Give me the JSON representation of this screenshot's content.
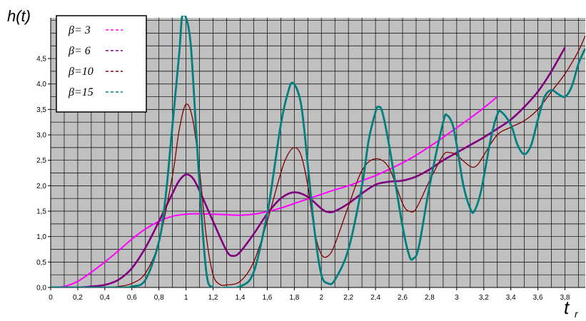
{
  "chart_data": {
    "type": "line",
    "title": "",
    "ylabel": "h(t)",
    "xlabel_main": "t",
    "xlabel_sub": "r",
    "xlim": [
      0,
      3.95
    ],
    "ylim": [
      0,
      5.3
    ],
    "x_ticks": [
      "0",
      "0,2",
      "0,4",
      "0,6",
      "0,8",
      "1",
      "1,2",
      "1,4",
      "1,6",
      "1,8",
      "2",
      "2,2",
      "2,4",
      "2,6",
      "2,8",
      "3",
      "3,2",
      "3,4",
      "3,6",
      "3,8"
    ],
    "y_ticks": [
      "0,0",
      "0,5",
      "1,0",
      "1,5",
      "2,0",
      "2,5",
      "3,0",
      "3,5",
      "4,0",
      "4,5"
    ],
    "grid": true,
    "legend_position": "top-left",
    "background_color": "#c0c0c0",
    "series": [
      {
        "name": "β= 3",
        "color": "#ff00ff",
        "points": [
          [
            0,
            0
          ],
          [
            0.1,
            0.02
          ],
          [
            0.2,
            0.12
          ],
          [
            0.3,
            0.3
          ],
          [
            0.4,
            0.5
          ],
          [
            0.5,
            0.72
          ],
          [
            0.6,
            0.95
          ],
          [
            0.7,
            1.15
          ],
          [
            0.8,
            1.3
          ],
          [
            0.9,
            1.4
          ],
          [
            1.0,
            1.44
          ],
          [
            1.1,
            1.45
          ],
          [
            1.2,
            1.44
          ],
          [
            1.3,
            1.43
          ],
          [
            1.4,
            1.42
          ],
          [
            1.5,
            1.44
          ],
          [
            1.6,
            1.49
          ],
          [
            1.7,
            1.56
          ],
          [
            1.8,
            1.65
          ],
          [
            1.9,
            1.74
          ],
          [
            2.0,
            1.83
          ],
          [
            2.1,
            1.92
          ],
          [
            2.2,
            2.0
          ],
          [
            2.3,
            2.1
          ],
          [
            2.4,
            2.2
          ],
          [
            2.5,
            2.32
          ],
          [
            2.6,
            2.45
          ],
          [
            2.7,
            2.6
          ],
          [
            2.8,
            2.77
          ],
          [
            2.9,
            2.95
          ],
          [
            3.0,
            3.14
          ],
          [
            3.1,
            3.33
          ],
          [
            3.2,
            3.53
          ],
          [
            3.3,
            3.75
          ]
        ]
      },
      {
        "name": "β= 6",
        "color": "#800080",
        "points": [
          [
            0,
            0
          ],
          [
            0.2,
            0.0
          ],
          [
            0.3,
            0.02
          ],
          [
            0.4,
            0.05
          ],
          [
            0.5,
            0.15
          ],
          [
            0.6,
            0.38
          ],
          [
            0.7,
            0.78
          ],
          [
            0.8,
            1.3
          ],
          [
            0.9,
            1.85
          ],
          [
            0.95,
            2.1
          ],
          [
            1.0,
            2.22
          ],
          [
            1.05,
            2.15
          ],
          [
            1.1,
            1.9
          ],
          [
            1.2,
            1.3
          ],
          [
            1.3,
            0.72
          ],
          [
            1.35,
            0.62
          ],
          [
            1.4,
            0.7
          ],
          [
            1.5,
            1.05
          ],
          [
            1.6,
            1.45
          ],
          [
            1.7,
            1.75
          ],
          [
            1.8,
            1.87
          ],
          [
            1.9,
            1.78
          ],
          [
            2.0,
            1.55
          ],
          [
            2.05,
            1.48
          ],
          [
            2.1,
            1.5
          ],
          [
            2.2,
            1.65
          ],
          [
            2.3,
            1.85
          ],
          [
            2.4,
            2.02
          ],
          [
            2.5,
            2.08
          ],
          [
            2.6,
            2.1
          ],
          [
            2.7,
            2.18
          ],
          [
            2.8,
            2.32
          ],
          [
            2.9,
            2.5
          ],
          [
            3.0,
            2.65
          ],
          [
            3.1,
            2.8
          ],
          [
            3.2,
            2.95
          ],
          [
            3.3,
            3.12
          ],
          [
            3.4,
            3.3
          ],
          [
            3.5,
            3.55
          ],
          [
            3.6,
            3.85
          ],
          [
            3.7,
            4.25
          ],
          [
            3.8,
            4.72
          ]
        ]
      },
      {
        "name": "β=10",
        "color": "#800000",
        "points": [
          [
            0,
            0
          ],
          [
            0.4,
            0.0
          ],
          [
            0.5,
            0.02
          ],
          [
            0.6,
            0.08
          ],
          [
            0.7,
            0.28
          ],
          [
            0.8,
            0.9
          ],
          [
            0.9,
            2.2
          ],
          [
            0.95,
            3.1
          ],
          [
            1.0,
            3.6
          ],
          [
            1.05,
            3.3
          ],
          [
            1.1,
            2.3
          ],
          [
            1.15,
            1.0
          ],
          [
            1.2,
            0.25
          ],
          [
            1.25,
            0.06
          ],
          [
            1.3,
            0.05
          ],
          [
            1.4,
            0.12
          ],
          [
            1.5,
            0.5
          ],
          [
            1.6,
            1.3
          ],
          [
            1.7,
            2.25
          ],
          [
            1.75,
            2.6
          ],
          [
            1.8,
            2.75
          ],
          [
            1.85,
            2.6
          ],
          [
            1.9,
            2.0
          ],
          [
            1.95,
            1.1
          ],
          [
            2.0,
            0.65
          ],
          [
            2.05,
            0.62
          ],
          [
            2.1,
            0.85
          ],
          [
            2.2,
            1.6
          ],
          [
            2.3,
            2.3
          ],
          [
            2.4,
            2.53
          ],
          [
            2.5,
            2.35
          ],
          [
            2.6,
            1.65
          ],
          [
            2.65,
            1.5
          ],
          [
            2.7,
            1.55
          ],
          [
            2.8,
            2.1
          ],
          [
            2.9,
            2.6
          ],
          [
            2.95,
            2.65
          ],
          [
            3.0,
            2.6
          ],
          [
            3.1,
            2.38
          ],
          [
            3.15,
            2.4
          ],
          [
            3.2,
            2.6
          ],
          [
            3.3,
            3.0
          ],
          [
            3.4,
            3.15
          ],
          [
            3.5,
            3.28
          ],
          [
            3.6,
            3.5
          ],
          [
            3.7,
            3.85
          ],
          [
            3.8,
            4.2
          ],
          [
            3.9,
            4.65
          ],
          [
            3.95,
            4.95
          ]
        ]
      },
      {
        "name": "β=15",
        "color": "#008080",
        "points": [
          [
            0,
            0
          ],
          [
            0.5,
            0.0
          ],
          [
            0.6,
            0.02
          ],
          [
            0.7,
            0.15
          ],
          [
            0.8,
            0.9
          ],
          [
            0.85,
            1.8
          ],
          [
            0.9,
            3.2
          ],
          [
            0.95,
            4.6
          ],
          [
            0.97,
            5.3
          ],
          [
            1.0,
            5.3
          ],
          [
            1.03,
            4.9
          ],
          [
            1.05,
            4.2
          ],
          [
            1.1,
            2.0
          ],
          [
            1.15,
            0.3
          ],
          [
            1.2,
            0.0
          ],
          [
            1.3,
            0.0
          ],
          [
            1.4,
            0.02
          ],
          [
            1.5,
            0.3
          ],
          [
            1.6,
            1.45
          ],
          [
            1.65,
            2.3
          ],
          [
            1.7,
            3.2
          ],
          [
            1.75,
            3.8
          ],
          [
            1.79,
            4.02
          ],
          [
            1.85,
            3.6
          ],
          [
            1.9,
            2.4
          ],
          [
            1.95,
            1.1
          ],
          [
            2.0,
            0.25
          ],
          [
            2.05,
            0.08
          ],
          [
            2.1,
            0.15
          ],
          [
            2.2,
            0.75
          ],
          [
            2.3,
            2.0
          ],
          [
            2.35,
            2.9
          ],
          [
            2.4,
            3.45
          ],
          [
            2.42,
            3.55
          ],
          [
            2.45,
            3.45
          ],
          [
            2.5,
            2.8
          ],
          [
            2.6,
            1.2
          ],
          [
            2.65,
            0.62
          ],
          [
            2.68,
            0.57
          ],
          [
            2.72,
            0.8
          ],
          [
            2.8,
            2.0
          ],
          [
            2.9,
            3.25
          ],
          [
            2.93,
            3.38
          ],
          [
            2.97,
            3.2
          ],
          [
            3.0,
            2.8
          ],
          [
            3.05,
            2.0
          ],
          [
            3.1,
            1.55
          ],
          [
            3.13,
            1.5
          ],
          [
            3.18,
            1.9
          ],
          [
            3.25,
            2.9
          ],
          [
            3.3,
            3.4
          ],
          [
            3.33,
            3.45
          ],
          [
            3.4,
            3.2
          ],
          [
            3.45,
            2.8
          ],
          [
            3.5,
            2.62
          ],
          [
            3.55,
            2.8
          ],
          [
            3.6,
            3.3
          ],
          [
            3.65,
            3.75
          ],
          [
            3.7,
            3.88
          ],
          [
            3.75,
            3.8
          ],
          [
            3.8,
            3.75
          ],
          [
            3.85,
            3.95
          ],
          [
            3.9,
            4.4
          ],
          [
            3.95,
            4.7
          ]
        ]
      }
    ]
  }
}
